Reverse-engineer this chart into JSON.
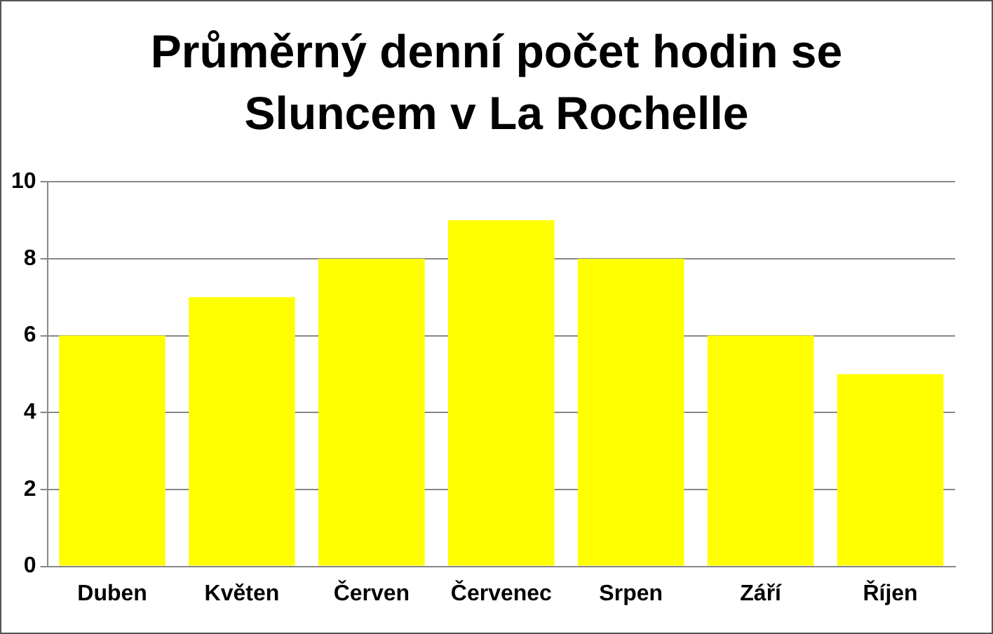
{
  "chart_data": {
    "type": "bar",
    "title": "Průměrný denní počet hodin se Sluncem v La Rochelle",
    "categories": [
      "Duben",
      "Květen",
      "Červen",
      "Červenec",
      "Srpen",
      "Září",
      "Říjen"
    ],
    "values": [
      6,
      7,
      8,
      9,
      8,
      6,
      5
    ],
    "color": "#ffff00",
    "ylim": [
      0,
      10
    ],
    "yticks": [
      0,
      2,
      4,
      6,
      8,
      10
    ],
    "grid": "y",
    "legend": false
  }
}
